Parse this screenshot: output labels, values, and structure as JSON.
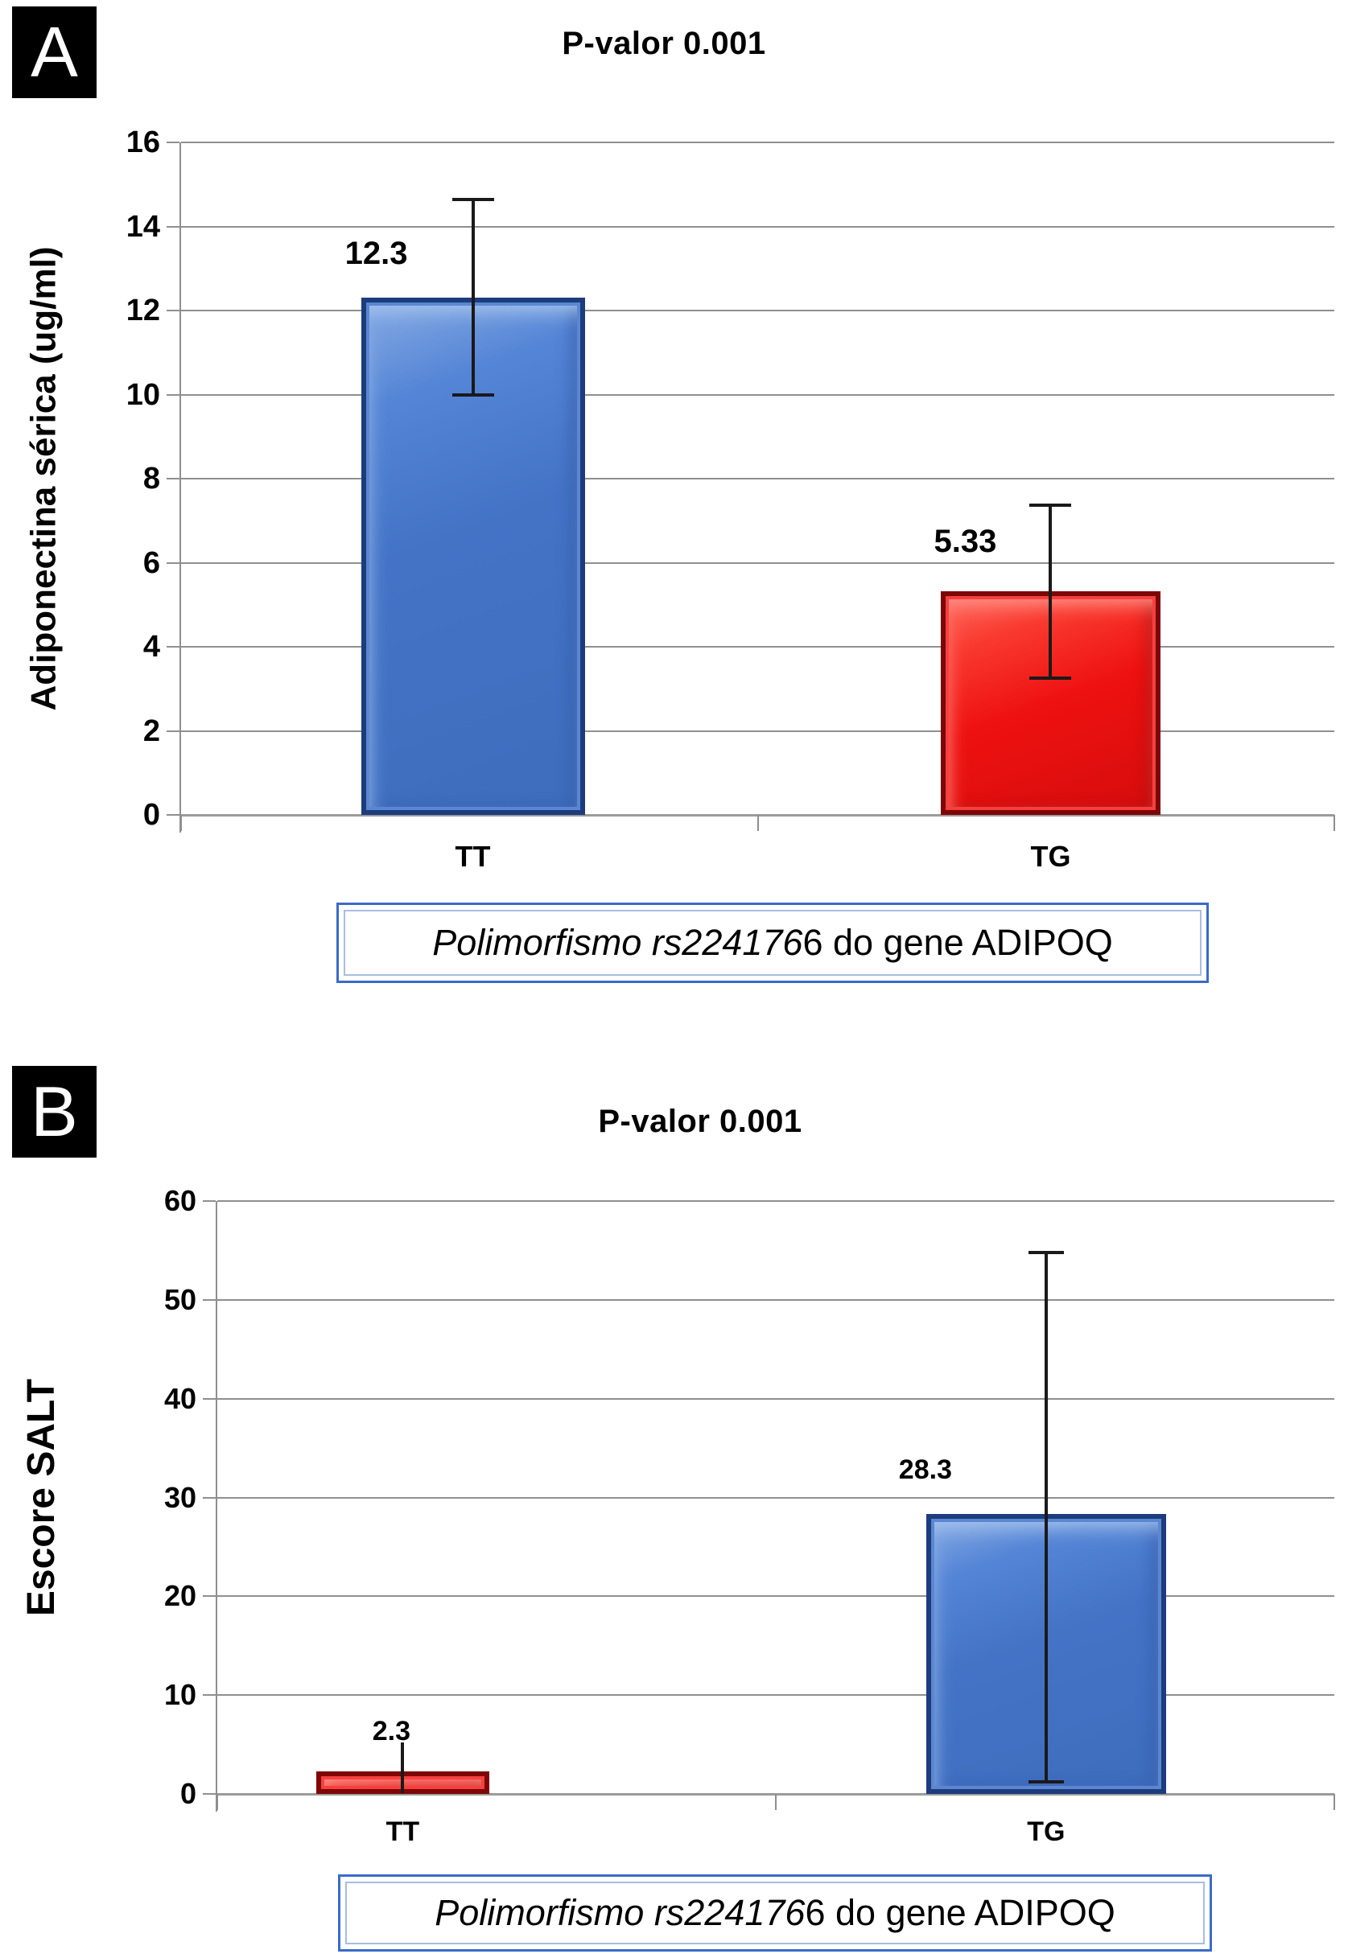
{
  "figure": {
    "panels": [
      {
        "panel_label": "A",
        "box": {
          "italic_part": "Polimorfismo rs224176",
          "regular_part": "6 do gene ADIPOQ",
          "full_text": "Polimorfismo rs2241766 do gene ADIPOQ"
        }
      },
      {
        "panel_label": "B",
        "box": {
          "italic_part": "Polimorfismo rs224176",
          "regular_part": "6 do gene ADIPOQ",
          "full_text": "Polimorfismo rs2241766 do gene ADIPOQ"
        }
      }
    ]
  },
  "chart_data": [
    {
      "type": "bar",
      "title": "P-valor 0.001",
      "ylabel": "Adiponectina sérica (ug/ml)",
      "xlabel": "Polimorfismo rs2241766 do gene ADIPOQ",
      "categories": [
        "TT",
        "TG"
      ],
      "values": [
        12.3,
        5.33
      ],
      "bar_labels": [
        "12.3",
        "5.33"
      ],
      "bar_colors": [
        "#4473c6",
        "#ee1111"
      ],
      "bar_color_names": [
        "blue",
        "red"
      ],
      "error_bars": [
        {
          "low": 10.0,
          "high": 14.65
        },
        {
          "low": 3.25,
          "high": 7.37
        }
      ],
      "yticks": [
        0,
        2,
        4,
        6,
        8,
        10,
        12,
        14,
        16
      ],
      "ylim": [
        0,
        16
      ],
      "grid": true,
      "legend": false
    },
    {
      "type": "bar",
      "title": "P-valor 0.001",
      "ylabel": "Escore SALT",
      "xlabel": "Polimorfismo rs2241766 do gene ADIPOQ",
      "categories": [
        "TT",
        "TG"
      ],
      "values": [
        2.3,
        28.3
      ],
      "bar_labels": [
        "2.3",
        "28.3"
      ],
      "bar_colors": [
        "#ee1111",
        "#4473c6"
      ],
      "bar_color_names": [
        "red",
        "blue"
      ],
      "error_bars": [
        {
          "low": 0.1,
          "high": 5.2
        },
        {
          "low": 1.2,
          "high": 54.8
        }
      ],
      "yticks": [
        0,
        10,
        20,
        30,
        40,
        50,
        60
      ],
      "ylim": [
        0,
        60
      ],
      "grid": true,
      "legend": false
    }
  ]
}
